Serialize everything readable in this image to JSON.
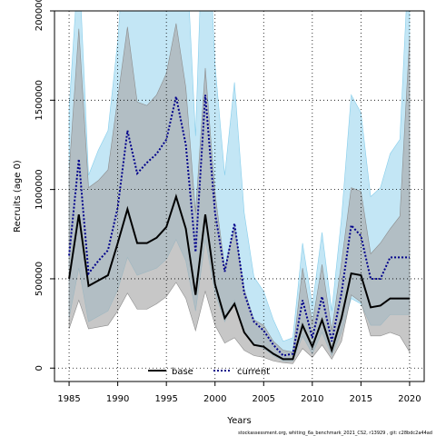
{
  "chart_data": {
    "type": "line",
    "xlabel": "Years",
    "ylabel": "Recruits (age 0)",
    "xlim": [
      1983.5,
      2021.5
    ],
    "ylim": [
      -75000,
      2000000
    ],
    "x_ticks": [
      1985,
      1990,
      1995,
      2000,
      2005,
      2010,
      2015,
      2020
    ],
    "y_ticks": [
      0,
      500000,
      1000000,
      1500000,
      2000000
    ],
    "grid": true,
    "legend_position": "bottom",
    "colors": {
      "base_line": "#000000",
      "base_band": "#a9a9a9",
      "current_line": "#00008b",
      "current_band": "#87ceeb"
    },
    "series": [
      {
        "name": "base",
        "style": "solid",
        "x": [
          1985,
          1986,
          1987,
          1988,
          1989,
          1990,
          1991,
          1992,
          1993,
          1994,
          1995,
          1996,
          1997,
          1998,
          1999,
          2000,
          2001,
          2002,
          2003,
          2004,
          2005,
          2006,
          2007,
          2008,
          2009,
          2010,
          2011,
          2012,
          2013,
          2014,
          2015,
          2016,
          2017,
          2018,
          2019,
          2020
        ],
        "values": [
          500000,
          860000,
          460000,
          490000,
          520000,
          700000,
          890000,
          700000,
          700000,
          730000,
          790000,
          960000,
          780000,
          410000,
          860000,
          470000,
          280000,
          360000,
          200000,
          130000,
          120000,
          80000,
          50000,
          50000,
          240000,
          120000,
          270000,
          100000,
          280000,
          530000,
          520000,
          340000,
          350000,
          390000,
          390000,
          390000
        ],
        "lower": [
          220000,
          380000,
          220000,
          230000,
          240000,
          320000,
          420000,
          330000,
          330000,
          360000,
          400000,
          480000,
          390000,
          210000,
          430000,
          240000,
          140000,
          170000,
          100000,
          70000,
          60000,
          40000,
          30000,
          25000,
          110000,
          60000,
          130000,
          50000,
          150000,
          410000,
          370000,
          180000,
          180000,
          200000,
          180000,
          90000
        ],
        "upper": [
          1100000,
          1900000,
          1010000,
          1050000,
          1110000,
          1510000,
          1910000,
          1490000,
          1470000,
          1530000,
          1650000,
          1930000,
          1570000,
          870000,
          1680000,
          980000,
          560000,
          790000,
          440000,
          270000,
          240000,
          150000,
          100000,
          90000,
          560000,
          250000,
          580000,
          210000,
          590000,
          1010000,
          990000,
          640000,
          700000,
          780000,
          850000,
          1850000
        ]
      },
      {
        "name": "current",
        "style": "dotted",
        "x": [
          1985,
          1986,
          1987,
          1988,
          1989,
          1990,
          1991,
          1992,
          1993,
          1994,
          1995,
          1996,
          1997,
          1998,
          1999,
          2000,
          2001,
          2002,
          2003,
          2004,
          2005,
          2006,
          2007,
          2008,
          2009,
          2010,
          2011,
          2012,
          2013,
          2014,
          2015,
          2016,
          2017,
          2018,
          2019,
          2020
        ],
        "values": [
          630000,
          1170000,
          530000,
          600000,
          660000,
          900000,
          1330000,
          1090000,
          1150000,
          1200000,
          1280000,
          1520000,
          1250000,
          650000,
          1530000,
          870000,
          540000,
          810000,
          420000,
          260000,
          210000,
          130000,
          70000,
          80000,
          380000,
          170000,
          400000,
          150000,
          420000,
          800000,
          740000,
          500000,
          500000,
          620000,
          620000,
          620000
        ],
        "lower": [
          280000,
          560000,
          260000,
          290000,
          320000,
          440000,
          620000,
          520000,
          540000,
          560000,
          610000,
          720000,
          600000,
          320000,
          720000,
          420000,
          260000,
          380000,
          200000,
          130000,
          110000,
          70000,
          40000,
          40000,
          180000,
          80000,
          200000,
          70000,
          200000,
          390000,
          360000,
          240000,
          240000,
          300000,
          300000,
          300000
        ],
        "upper": [
          1450000,
          2300000,
          1080000,
          1220000,
          1330000,
          1830000,
          2600000,
          2200000,
          2250000,
          2350000,
          2500000,
          2900000,
          2400000,
          1300000,
          2900000,
          1700000,
          1080000,
          1600000,
          870000,
          510000,
          430000,
          270000,
          150000,
          170000,
          700000,
          350000,
          760000,
          320000,
          840000,
          1530000,
          1430000,
          960000,
          1010000,
          1200000,
          1280000,
          2400000
        ]
      }
    ],
    "legend": [
      {
        "label": "base",
        "series": "base"
      },
      {
        "label": "current",
        "series": "current"
      }
    ],
    "footer": "stockassessment.org, whiting_6a_benchmark_2021_CS2, r13929 , git: c28bdc2a44ad"
  }
}
